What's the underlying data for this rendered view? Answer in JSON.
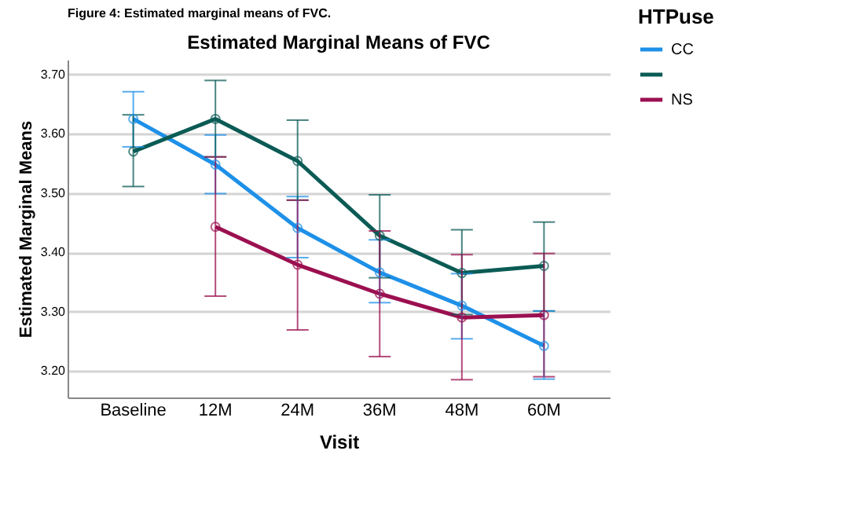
{
  "chart_data": {
    "type": "line",
    "title": "Estimated Marginal Means of FVC",
    "xlabel": "Visit",
    "ylabel": "Estimated Marginal Means",
    "legend_title": "HTPuse",
    "annotations": [
      "Figure 4: Estimated marginal means of FVC."
    ],
    "categories": [
      "Baseline",
      "12M",
      "24M",
      "36M",
      "48M",
      "60M"
    ],
    "series": [
      {
        "name": "CC",
        "color": "#1e90e8",
        "values": [
          3.625,
          3.548,
          3.441,
          3.366,
          3.31,
          3.242
        ],
        "errors": [
          [
            3.578,
            3.671
          ],
          [
            3.499,
            3.598
          ],
          [
            3.391,
            3.494
          ],
          [
            3.315,
            3.421
          ],
          [
            3.254,
            3.364
          ],
          [
            3.186,
            3.301
          ]
        ]
      },
      {
        "name": null,
        "color": "#0b5b55",
        "values": [
          3.57,
          3.625,
          3.554,
          3.428,
          3.365,
          3.377
        ],
        "errors": [
          [
            3.511,
            3.632
          ],
          [
            3.561,
            3.69
          ],
          [
            3.488,
            3.623
          ],
          [
            3.357,
            3.497
          ],
          [
            3.295,
            3.438
          ],
          [
            3.301,
            3.451
          ]
        ]
      },
      {
        "name": "NS",
        "color": "#9b1050",
        "values": [
          null,
          3.443,
          3.379,
          3.33,
          3.29,
          3.294
        ],
        "errors": [
          null,
          [
            3.326,
            3.561
          ],
          [
            3.269,
            3.488
          ],
          [
            3.224,
            3.436
          ],
          [
            3.185,
            3.396
          ],
          [
            3.19,
            3.398
          ]
        ]
      }
    ],
    "ylim": [
      3.155,
      3.725
    ],
    "yticks": [
      {
        "value": 3.2,
        "label": "3.20"
      },
      {
        "value": 3.3,
        "label": "3.30"
      },
      {
        "value": 3.4,
        "label": "3.40"
      },
      {
        "value": 3.5,
        "label": "3.50"
      },
      {
        "value": 3.6,
        "label": "3.60"
      },
      {
        "value": 3.7,
        "label": "3.70"
      }
    ],
    "grid": "y",
    "legend": "top right",
    "marker": "circle",
    "line_style": "solid"
  }
}
